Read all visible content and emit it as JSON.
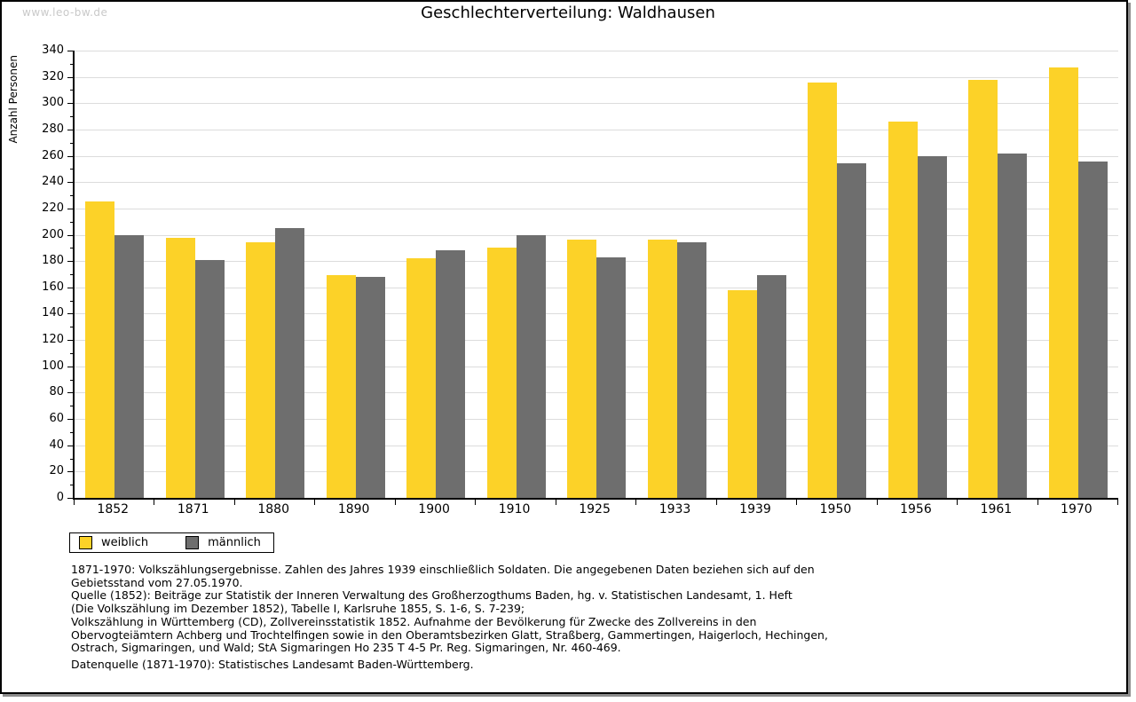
{
  "watermark": "www.leo-bw.de",
  "title": "Geschlechterverteilung: Waldhausen",
  "y_axis_label": "Anzahl Personen",
  "legend": {
    "female_label": "weiblich",
    "male_label": "männlich"
  },
  "colors": {
    "female": "#fcd228",
    "male": "#6e6e6e",
    "grid": "#dcdcdc",
    "watermark": "#c9c9c9",
    "frame_shadow": "#8c8c8c"
  },
  "chart_data": {
    "type": "bar",
    "title": "Geschlechterverteilung: Waldhausen",
    "xlabel": "",
    "ylabel": "Anzahl Personen",
    "ylim": [
      0,
      340
    ],
    "ytick_step": 20,
    "ytick_minor_step": 10,
    "grid": true,
    "legend_position": "bottom-left",
    "categories": [
      "1852",
      "1871",
      "1880",
      "1890",
      "1900",
      "1910",
      "1925",
      "1933",
      "1939",
      "1950",
      "1956",
      "1961",
      "1970"
    ],
    "series": [
      {
        "name": "weiblich",
        "color": "#fcd228",
        "values": [
          225,
          198,
          194,
          169,
          182,
          190,
          196,
          196,
          158,
          316,
          286,
          318,
          327
        ]
      },
      {
        "name": "männlich",
        "color": "#6e6e6e",
        "values": [
          200,
          181,
          205,
          168,
          188,
          200,
          183,
          194,
          169,
          254,
          260,
          262,
          256
        ]
      }
    ]
  },
  "footnotes": [
    "1871-1970: Volkszählungsergebnisse. Zahlen des Jahres 1939 einschließlich Soldaten. Die angegebenen Daten beziehen sich auf den",
    "Gebietsstand vom 27.05.1970.",
    "Quelle (1852): Beiträge zur Statistik der Inneren Verwaltung des Großherzogthums Baden, hg. v. Statistischen Landesamt, 1. Heft",
    "(Die Volkszählung im Dezember 1852), Tabelle I, Karlsruhe 1855, S. 1-6, S. 7-239;",
    "Volkszählung in Württemberg (CD), Zollvereinsstatistik 1852. Aufnahme der Bevölkerung für Zwecke des Zollvereins in den",
    "Obervogteiämtern Achberg und Trochtelfingen sowie in den Oberamtsbezirken Glatt, Straßberg, Gammertingen, Haigerloch, Hechingen,",
    "Ostrach, Sigmaringen, und Wald; StA Sigmaringen Ho 235 T 4-5 Pr. Reg. Sigmaringen, Nr. 460-469."
  ],
  "datasource": "Datenquelle (1871-1970): Statistisches Landesamt Baden-Württemberg."
}
